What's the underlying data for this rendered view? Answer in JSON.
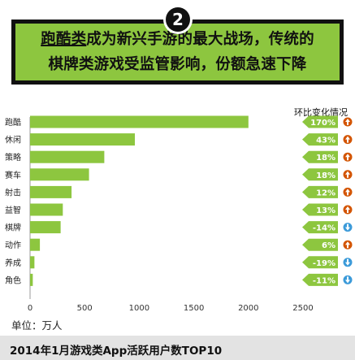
{
  "header": {
    "number": "2",
    "line1_highlight": "跑酷类",
    "line1_rest": "成为新兴手游的最大战场，传统的",
    "line2": "棋牌类游戏受监管影响，份额急速下降"
  },
  "colors": {
    "bar": "#8dc63f",
    "banner": "#8dc63f",
    "up_icon": "#d35400",
    "down_icon": "#3b9ad9"
  },
  "chart_data": {
    "type": "bar",
    "orientation": "horizontal",
    "title": "2014年1月游戏类App活跃用户数TOP10",
    "unit_label": "单位：万人",
    "categories": [
      "跑酷",
      "休闲",
      "策略",
      "赛车",
      "射击",
      "益智",
      "棋牌",
      "动作",
      "养成",
      "角色"
    ],
    "values": [
      2000,
      960,
      680,
      540,
      380,
      300,
      280,
      90,
      40,
      25
    ],
    "xlim": [
      0,
      2500
    ],
    "xticks": [
      "0",
      "500",
      "1000",
      "1500",
      "2000",
      "2500"
    ],
    "change_header": "环比变化情况",
    "changes": [
      "170%",
      "43%",
      "18%",
      "18%",
      "12%",
      "13%",
      "-14%",
      "6%",
      "-19%",
      "-11%"
    ],
    "change_direction": [
      "up",
      "up",
      "up",
      "up",
      "up",
      "up",
      "down",
      "up",
      "down",
      "down"
    ]
  }
}
